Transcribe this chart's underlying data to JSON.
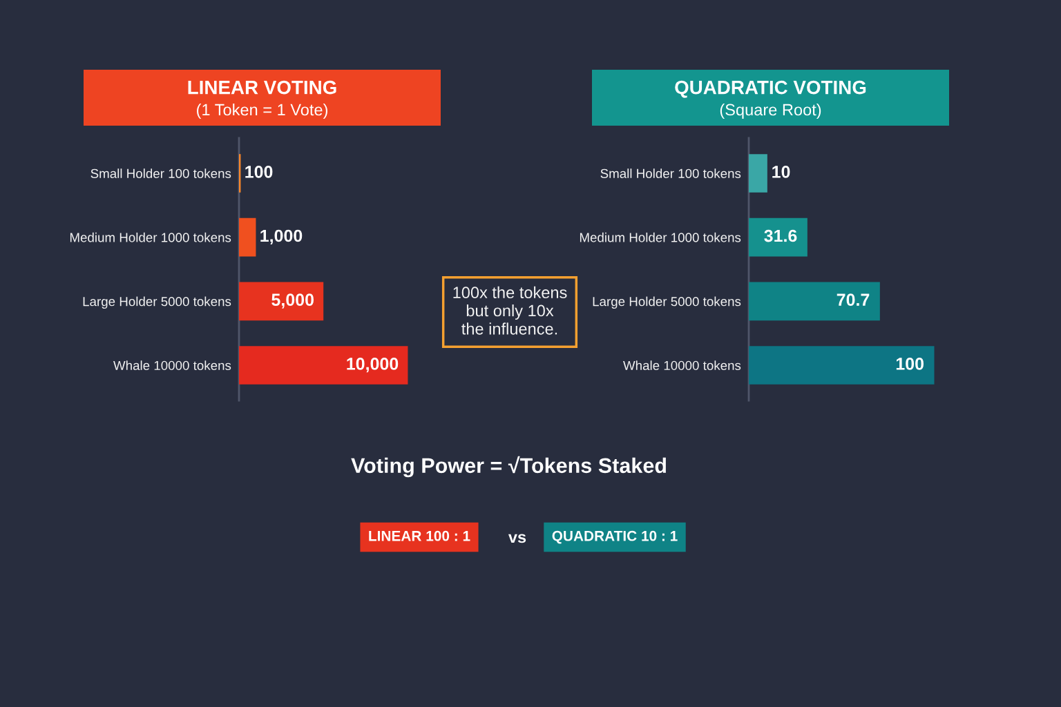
{
  "chart_data": [
    {
      "type": "bar",
      "orientation": "horizontal",
      "title": "LINEAR VOTING",
      "subtitle": "(1 Token = 1 Vote)",
      "categories": [
        "Small Holder 100 tokens",
        "Medium Holder 1000 tokens",
        "Large Holder 5000 tokens",
        "Whale 10000 tokens"
      ],
      "values": [
        100,
        1000,
        5000,
        10000
      ],
      "colors": [
        "#f7862a",
        "#f0501f",
        "#e7331f",
        "#e52a1f"
      ],
      "value_labels": [
        "100",
        "1,000",
        "5,000",
        "10,000"
      ],
      "tick_labels": "y",
      "annotations": [
        "100x the tokens\nbut only 10x\nthe influence."
      ]
    },
    {
      "type": "bar",
      "orientation": "horizontal",
      "title": "QUADRATIC VOTING",
      "subtitle": "(Square Root)",
      "categories": [
        "Small Holder 100 tokens",
        "Medium Holder 1000 tokens",
        "Large Holder 5000 tokens",
        "Whale 10000 tokens"
      ],
      "values": [
        10,
        31.6,
        70.7,
        100
      ],
      "colors": [
        "#3aa7a6",
        "#15918e",
        "#0f8386",
        "#0d7584"
      ],
      "data_labels": true,
      "tick_labels": "y"
    },
    {
      "type": "other",
      "annotations": [
        "Voting Power = √Tokens Staked",
        "LINEAR 100 : 1",
        "vs",
        "QUADRATIC 10 : 1"
      ]
    }
  ]
}
